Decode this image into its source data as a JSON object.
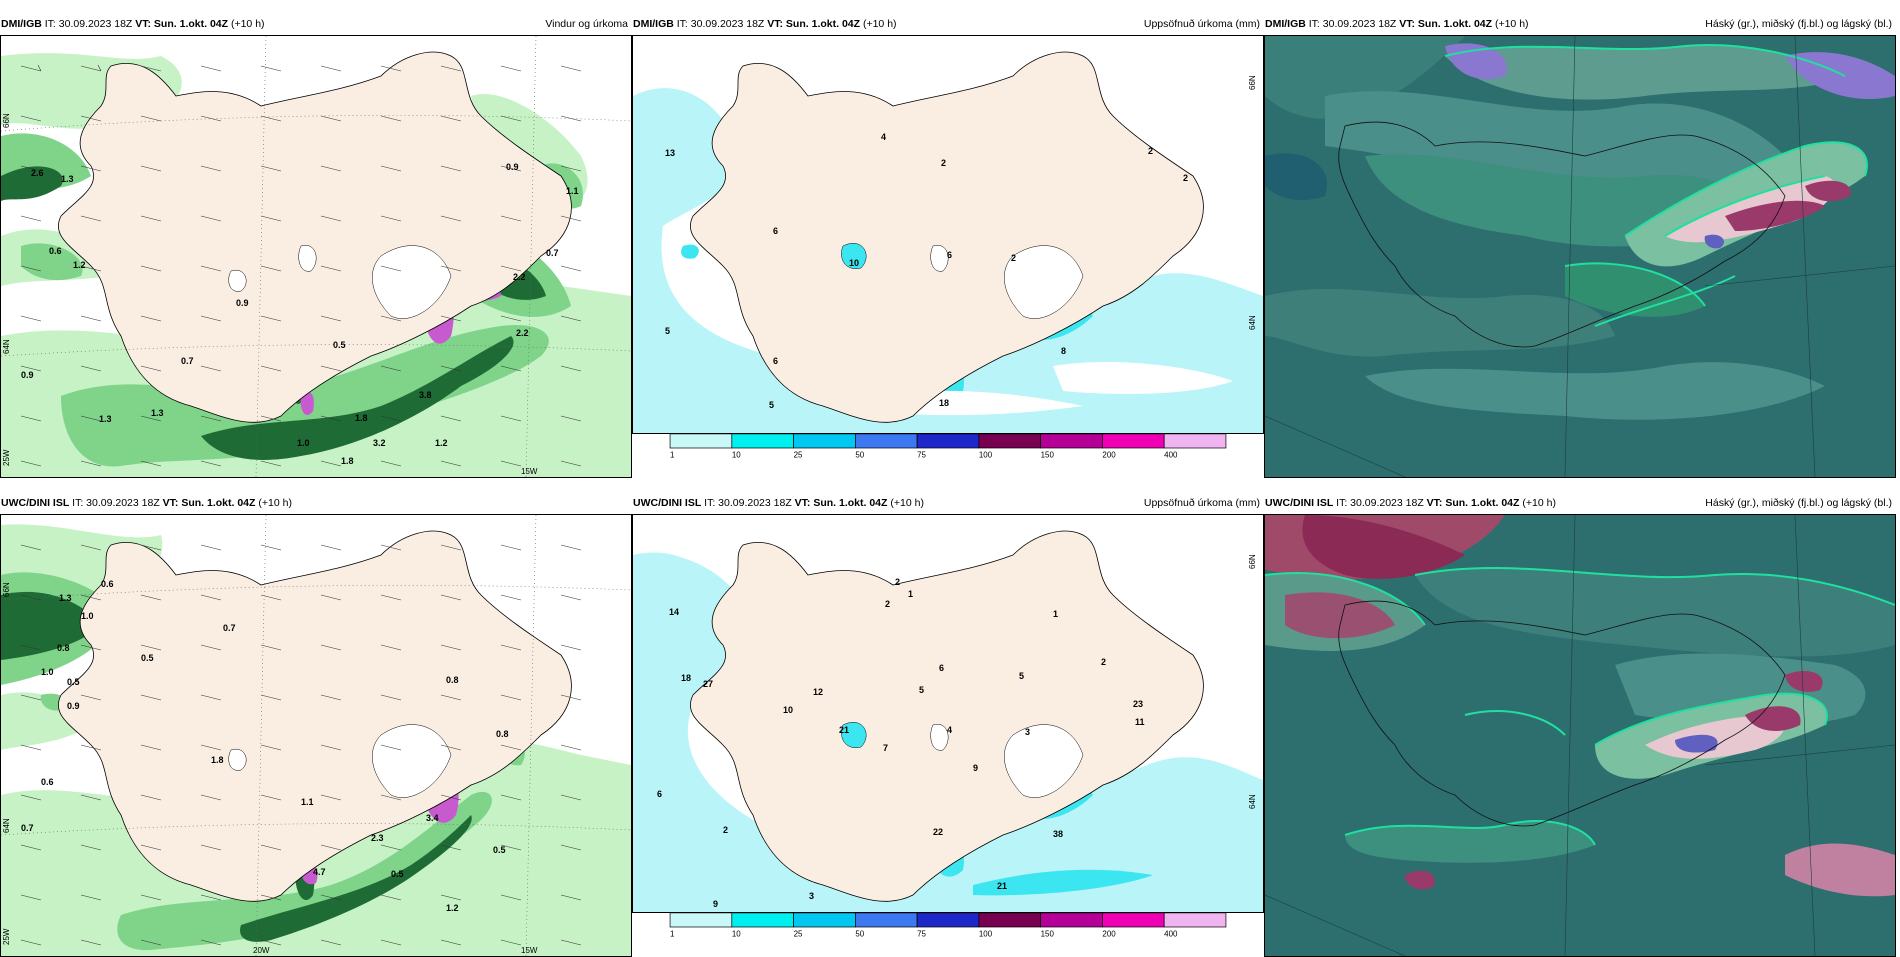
{
  "panels": [
    {
      "model": "DMI/IGB",
      "run": "IT: 30.09.2023 18Z",
      "valid": "VT: Sun. 1.okt. 04Z",
      "lead": "(+10 h)",
      "title": "Vindur og úrkoma",
      "kind": "wind"
    },
    {
      "model": "DMI/IGB",
      "run": "IT: 30.09.2023 18Z",
      "valid": "VT: Sun. 1.okt. 04Z",
      "lead": "(+10 h)",
      "title": "Uppsöfnuð úrkoma (mm)",
      "kind": "precip"
    },
    {
      "model": "DMI/IGB",
      "run": "IT: 30.09.2023 18Z",
      "valid": "VT: Sun. 1.okt. 04Z",
      "lead": "(+10 h)",
      "title": "Háský (gr.), miðský (fj.bl.) og lágský (bl.)",
      "kind": "cloud"
    },
    {
      "model": "UWC/DINI ISL",
      "run": "IT: 30.09.2023 18Z",
      "valid": "VT: Sun. 1.okt. 04Z",
      "lead": "(+10 h)",
      "title": "",
      "kind": "wind"
    },
    {
      "model": "UWC/DINI ISL",
      "run": "IT: 30.09.2023 18Z",
      "valid": "VT: Sun. 1.okt. 04Z",
      "lead": "(+10 h)",
      "title": "Uppsöfnuð úrkoma (mm)",
      "kind": "precip"
    },
    {
      "model": "UWC/DINI ISL",
      "run": "IT: 30.09.2023 18Z",
      "valid": "VT: Sun. 1.okt. 04Z",
      "lead": "(+10 h)",
      "title": "Háský (gr.), miðský (fj.bl.) og lágský (bl.)",
      "kind": "cloud"
    }
  ],
  "colorbar": {
    "ticks": [
      "1",
      "10",
      "25",
      "50",
      "75",
      "100",
      "150",
      "200",
      "400"
    ],
    "colors": [
      "#c8f8f8",
      "#00f0f0",
      "#00c8f0",
      "#3c78f0",
      "#1e28c8",
      "#780050",
      "#b40096",
      "#f000b4",
      "#f0b4f0"
    ]
  },
  "coords": {
    "lat_n": "66N",
    "lat_s": "64N",
    "lon_w": "25W",
    "lon_mid": "20W",
    "lon_e": "15W"
  },
  "wind_labels_top": [
    "2.6",
    "1.3",
    "0.6",
    "1.2",
    "0.9",
    "0.5",
    "0.7",
    "0.9",
    "0.9",
    "0.7",
    "1.1",
    "2.2",
    "2.2",
    "3.8",
    "1.3",
    "1.8",
    "1.3",
    "1.0",
    "1.8",
    "3.2",
    "1.2"
  ],
  "wind_labels_bottom": [
    "0.6",
    "1.3",
    "1.0",
    "0.8",
    "0.5",
    "0.7",
    "1.0",
    "0.5",
    "0.8",
    "0.9",
    "0.6",
    "1.8",
    "0.8",
    "0.7",
    "1.1",
    "4.7",
    "3.4",
    "2.3",
    "0.5",
    "0.5",
    "1.2"
  ],
  "precip_labels_top": [
    "13",
    "4",
    "2",
    "2",
    "2",
    "6",
    "10",
    "6",
    "2",
    "5",
    "6",
    "5",
    "18",
    "8"
  ],
  "precip_labels_bottom": [
    "14",
    "18",
    "27",
    "12",
    "10",
    "21",
    "2",
    "2",
    "1",
    "1",
    "7",
    "5",
    "6",
    "4",
    "5",
    "23",
    "11",
    "2",
    "3",
    "6",
    "9",
    "22",
    "21",
    "38",
    "3",
    "2",
    "9"
  ],
  "colors": {
    "land": "#faeee2",
    "green_light": "#c6f2c6",
    "green_mid": "#7fd48a",
    "green_dark": "#1f6b35",
    "purple": "#c85ad0",
    "cyan_light": "#b8f4f8",
    "cyan": "#3ce6f0",
    "cloud_bg": "#2d6e6e"
  }
}
